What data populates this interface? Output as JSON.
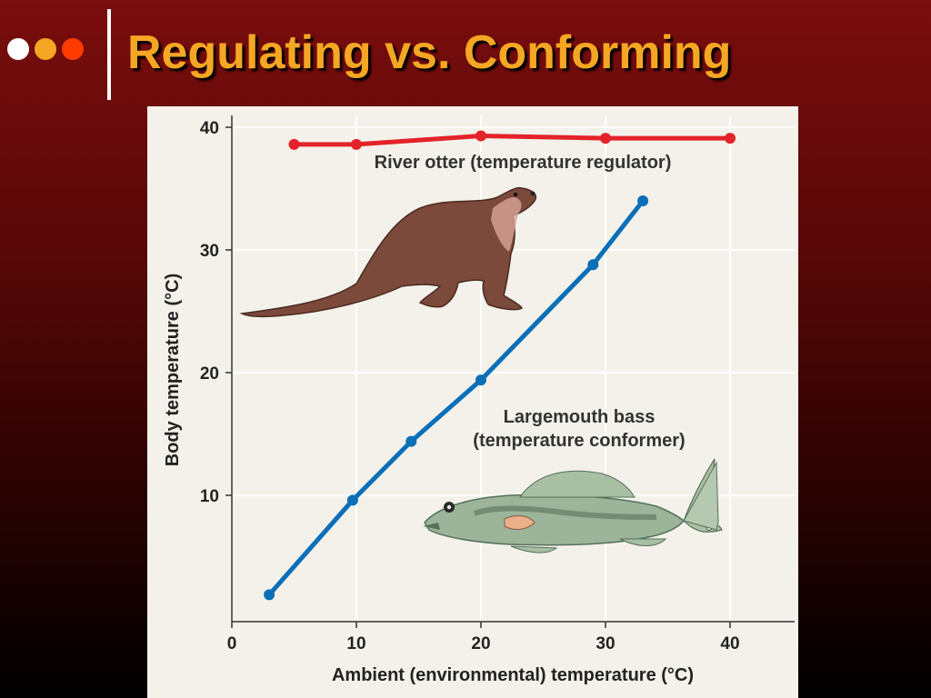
{
  "slide": {
    "title": "Regulating vs. Conforming",
    "bullet_colors": [
      "#ffffff",
      "#f5a623",
      "#ff3b00"
    ]
  },
  "chart_data": {
    "type": "line",
    "xlabel": "Ambient (environmental) temperature (°C)",
    "ylabel": "Body temperature (°C)",
    "xlim": [
      0,
      45
    ],
    "ylim": [
      0,
      42
    ],
    "xticks": [
      0,
      10,
      20,
      30,
      40
    ],
    "yticks": [
      10,
      20,
      30,
      40
    ],
    "grid": true,
    "series": [
      {
        "name": "River otter (temperature regulator)",
        "color": "#e32329",
        "x": [
          5,
          10,
          20,
          30,
          40
        ],
        "y": [
          38.6,
          38.6,
          39.3,
          39.1,
          39.1
        ]
      },
      {
        "name": "Largemouth bass (temperature conformer)",
        "color": "#0b6fb8",
        "x": [
          3,
          9.7,
          14.4,
          20,
          29,
          33
        ],
        "y": [
          1.9,
          9.6,
          14.4,
          19.4,
          28.8,
          34
        ]
      }
    ],
    "bass_label_lines": [
      "Largemouth bass",
      "(temperature conformer)"
    ],
    "illustrations": [
      "otter-illustration",
      "bass-illustration"
    ]
  }
}
